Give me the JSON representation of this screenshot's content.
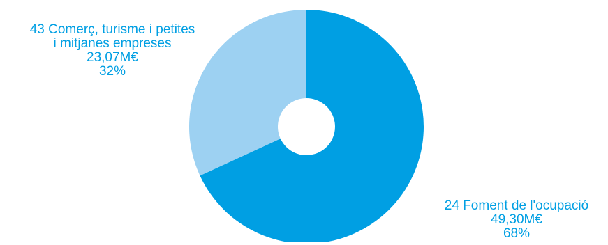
{
  "chart_data": {
    "type": "pie",
    "donut": true,
    "slices": [
      {
        "name_lines": [
          "24 Foment de l'ocupació"
        ],
        "amount": "49,30M€",
        "percent_label": "68%",
        "value": 49.3,
        "color": "#009fe3"
      },
      {
        "name_lines": [
          "43 Comerç, turisme i petites",
          "i mitjanes empreses"
        ],
        "amount": "23,07M€",
        "percent_label": "32%",
        "value": 23.07,
        "color": "#9dd1f2"
      }
    ],
    "start_angle": "12 o'clock",
    "direction": "clockwise",
    "label_color": "#009fe3",
    "legend": "none"
  }
}
